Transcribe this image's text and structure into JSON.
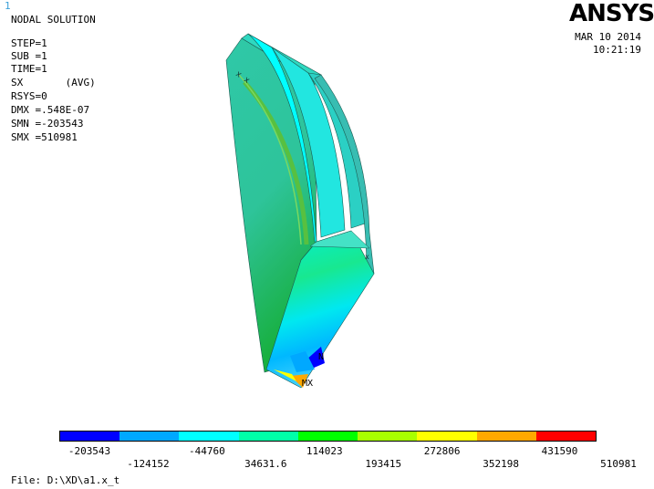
{
  "window_number": "1",
  "title": "NODAL SOLUTION",
  "info": [
    "STEP=1",
    "SUB =1",
    "TIME=1",
    "SX       (AVG)",
    "RSYS=0",
    "DMX =.548E-07",
    "SMN =-203543",
    "SMX =510981"
  ],
  "brand": "ANSYS",
  "date": "MAR 10 2014",
  "time": "10:21:19",
  "markers": {
    "min": "N",
    "max": "MX"
  },
  "legend": {
    "colors": [
      "#0000ff",
      "#00a8ff",
      "#00ffff",
      "#00ffa8",
      "#00ff00",
      "#a8ff00",
      "#ffff00",
      "#ffa800",
      "#ff0000"
    ],
    "upper_labels": [
      "-203543",
      "-44760",
      "114023",
      "272806",
      "431590"
    ],
    "lower_labels": [
      "-124152",
      "34631.6",
      "193415",
      "352198",
      "510981"
    ]
  },
  "file_line": "File: D:\\XD\\a1.x_t"
}
